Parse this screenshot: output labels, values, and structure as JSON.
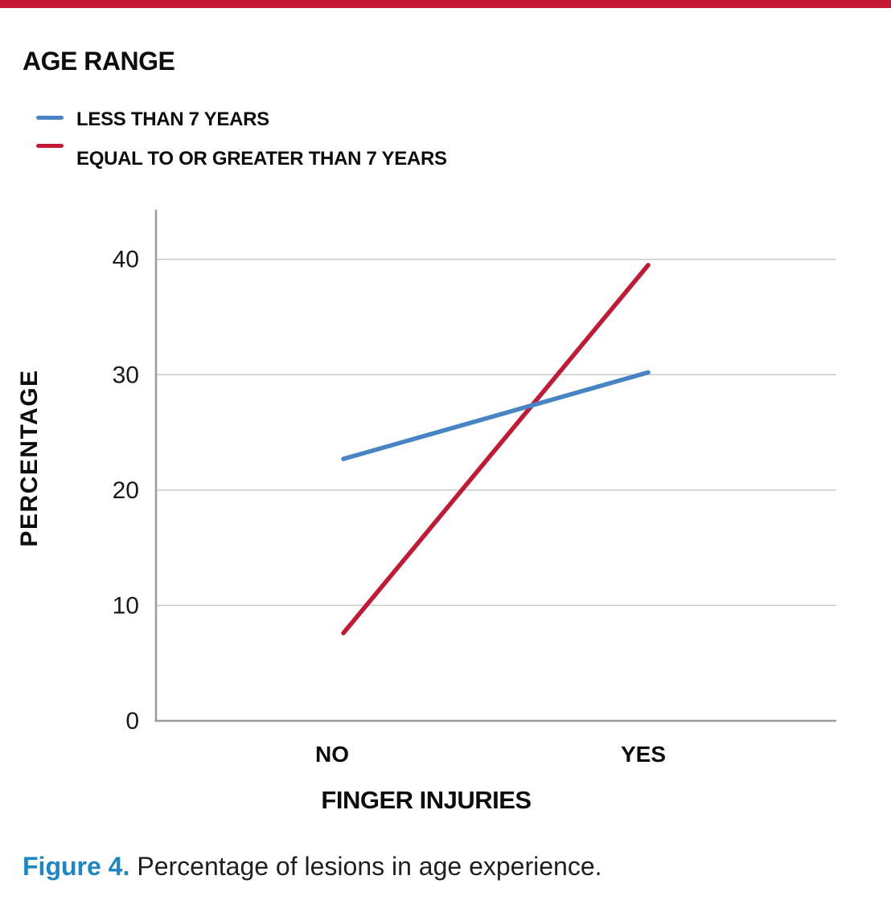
{
  "header": {
    "accent_bar_color": "#c41934"
  },
  "legend": {
    "title": "AGE RANGE",
    "items": [
      {
        "label": "LESS THAN 7 YEARS",
        "color": "#4684c4"
      },
      {
        "label": "EQUAL TO OR GREATER THAN 7 YEARS",
        "color": "#c41934"
      }
    ]
  },
  "chart_data": {
    "type": "line",
    "categories": [
      "NO",
      "YES"
    ],
    "series": [
      {
        "name": "LESS THAN 7 YEARS",
        "color": "#4684c4",
        "values": [
          22.7,
          30.2
        ]
      },
      {
        "name": "EQUAL TO OR GREATER THAN 7 YEARS",
        "color": "#c41934",
        "values": [
          7.6,
          39.5
        ]
      }
    ],
    "xlabel": "FINGER INJURIES",
    "ylabel": "PERCENTAGE",
    "ylim": [
      0,
      44.3
    ],
    "yticks": [
      0,
      10,
      20,
      30,
      40
    ],
    "grid": "horizontal",
    "legend_position": "top-left"
  },
  "caption": {
    "label": "Figure 4.",
    "text": "Percentage of lesions in age experience.",
    "label_color": "#1e86c4"
  }
}
